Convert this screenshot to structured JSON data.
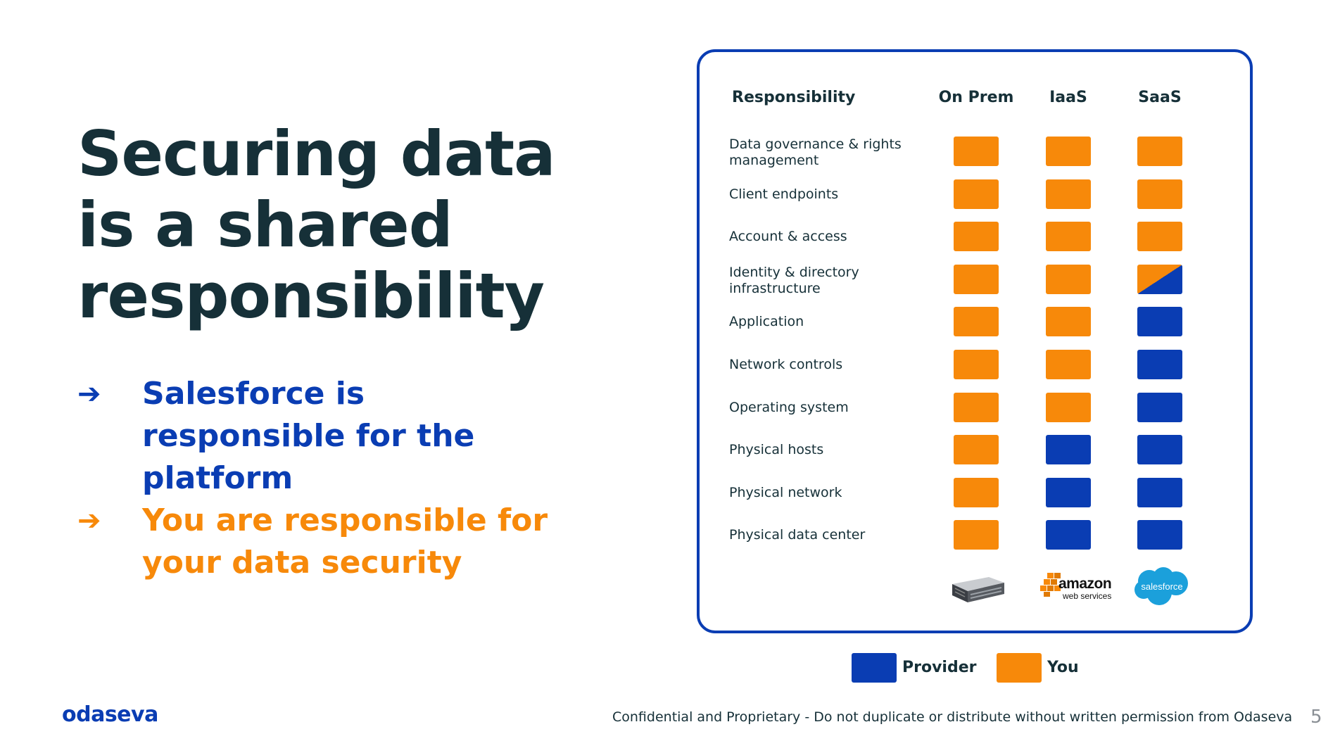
{
  "title": {
    "lines": [
      "Securing data",
      "is a shared",
      "responsibility"
    ]
  },
  "bullets": [
    {
      "arrow": "➔",
      "text": "Salesforce is responsible for the platform",
      "color": "#0A3DB3"
    },
    {
      "arrow": "➔",
      "text": "You are responsible for your data security",
      "color": "#F7890A"
    }
  ],
  "table": {
    "headers": {
      "responsibility": "Responsibility",
      "columns": [
        "On Prem",
        "IaaS",
        "SaaS"
      ]
    },
    "rows": [
      {
        "label": "Data governance & rights management",
        "values": [
          "you",
          "you",
          "you"
        ]
      },
      {
        "label": "Client endpoints",
        "values": [
          "you",
          "you",
          "you"
        ]
      },
      {
        "label": "Account & access",
        "values": [
          "you",
          "you",
          "you"
        ]
      },
      {
        "label": "Identity & directory infrastructure",
        "values": [
          "you",
          "you",
          "split"
        ]
      },
      {
        "label": "Application",
        "values": [
          "you",
          "you",
          "provider"
        ]
      },
      {
        "label": "Network controls",
        "values": [
          "you",
          "you",
          "provider"
        ]
      },
      {
        "label": "Operating system",
        "values": [
          "you",
          "you",
          "provider"
        ]
      },
      {
        "label": "Physical hosts",
        "values": [
          "you",
          "provider",
          "provider"
        ]
      },
      {
        "label": "Physical network",
        "values": [
          "you",
          "provider",
          "provider"
        ]
      },
      {
        "label": "Physical data center",
        "values": [
          "you",
          "provider",
          "provider"
        ]
      }
    ],
    "logos": [
      {
        "icon": "server-icon"
      },
      {
        "icon": "amazon-web-services-logo",
        "text_main": "amazon",
        "text_sub": "web services"
      },
      {
        "icon": "salesforce-logo",
        "text": "salesforce"
      }
    ]
  },
  "legend": [
    {
      "key": "provider",
      "label": "Provider",
      "color": "#0A3DB3"
    },
    {
      "key": "you",
      "label": "You",
      "color": "#F7890A"
    }
  ],
  "footer": {
    "brand": "odaseva",
    "notice": "Confidential and Proprietary - Do not duplicate or distribute without written permission from Odaseva",
    "page_number": "5"
  }
}
